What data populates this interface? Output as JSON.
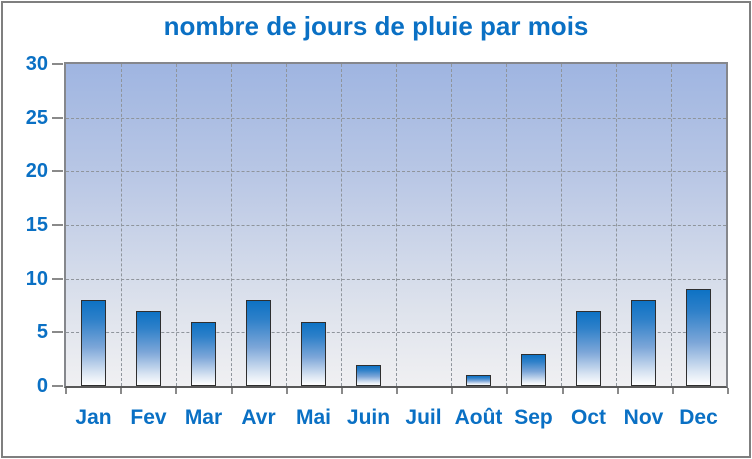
{
  "window": {
    "frame_border_color": "#7f7f7f"
  },
  "colors": {
    "accent_text_blue": "#0a70c4",
    "bar_top_blue": "#0d72c4",
    "bar_bottom": "#ffffff",
    "bar_outline": "#2f2f2f",
    "plot_bg_top": "#9fb5e1",
    "plot_bg_bottom": "#f0f0f2",
    "plot_border": "#85878c",
    "axis_line": "#595959",
    "gridline": "#8f959c"
  },
  "chart_data": {
    "type": "bar",
    "title": "nombre de jours de pluie par mois",
    "categories": [
      "Jan",
      "Fev",
      "Mar",
      "Avr",
      "Mai",
      "Juin",
      "Juil",
      "Août",
      "Sep",
      "Oct",
      "Nov",
      "Dec"
    ],
    "values": [
      8,
      7,
      6,
      8,
      6,
      2,
      0,
      1,
      3,
      7,
      8,
      9
    ],
    "xlabel": "",
    "ylabel": "",
    "ylim": [
      0,
      30
    ],
    "ytick_step": 5,
    "ytick_labels": [
      "0",
      "5",
      "10",
      "15",
      "20",
      "25",
      "30"
    ],
    "grid": true,
    "grid_style": "dashed",
    "legend": false,
    "plot_background": "gradient-blue-to-white",
    "bar_fill": "gradient-blue-to-white"
  }
}
